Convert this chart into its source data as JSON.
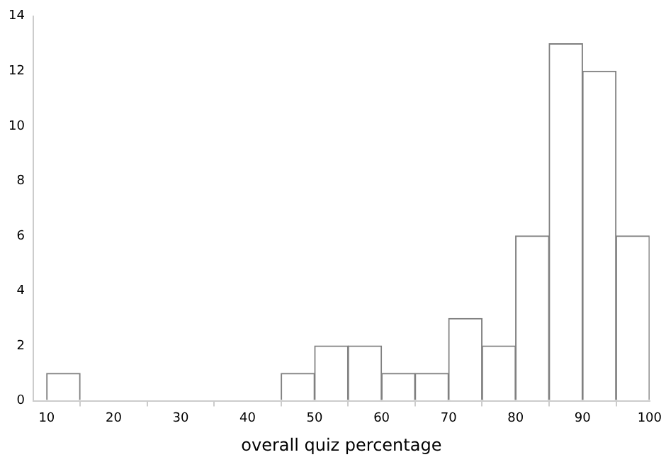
{
  "chart_data": {
    "type": "histogram",
    "xlabel": "overall quiz percentage",
    "bins": [
      10,
      15,
      20,
      25,
      30,
      35,
      40,
      45,
      50,
      55,
      60,
      65,
      70,
      75,
      80,
      85,
      90,
      95,
      100
    ],
    "values": [
      1,
      0,
      0,
      0,
      0,
      0,
      0,
      1,
      2,
      2,
      1,
      1,
      3,
      2,
      6,
      13,
      12,
      6
    ],
    "color": "#ffffff",
    "xlim": [
      8,
      100
    ],
    "xticks": [
      10,
      20,
      30,
      40,
      50,
      60,
      70,
      80,
      90,
      100
    ],
    "ylim": [
      0,
      14
    ],
    "yticks": [
      0,
      2,
      4,
      6,
      8,
      10,
      12,
      14
    ],
    "grid": false,
    "legend": false
  }
}
